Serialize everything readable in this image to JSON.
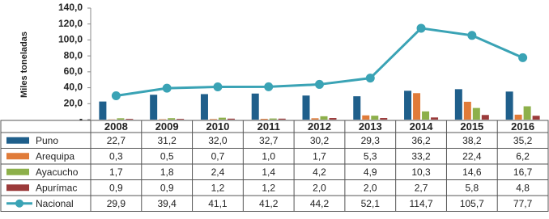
{
  "chart_data": {
    "type": "bar",
    "y_label": "Miles toneladas",
    "categories": [
      "2008",
      "2009",
      "2010",
      "2011",
      "2012",
      "2013",
      "2014",
      "2015",
      "2016"
    ],
    "ylim": [
      0,
      140
    ],
    "yticks": [
      {
        "value": 0,
        "label": "-"
      },
      {
        "value": 20,
        "label": "20,0"
      },
      {
        "value": 40,
        "label": "40,0"
      },
      {
        "value": 60,
        "label": "60,0"
      },
      {
        "value": 80,
        "label": "80,0"
      },
      {
        "value": 100,
        "label": "100,0"
      },
      {
        "value": 120,
        "label": "120,0"
      },
      {
        "value": 140,
        "label": "140,0"
      }
    ],
    "series": [
      {
        "name": "Puno",
        "type": "bar",
        "color": "#1f5f8b",
        "values": [
          22.7,
          31.2,
          32.0,
          32.7,
          30.2,
          29.3,
          36.2,
          38.2,
          35.2
        ],
        "value_labels": [
          "22,7",
          "31,2",
          "32,0",
          "32,7",
          "30,2",
          "29,3",
          "36,2",
          "38,2",
          "35,2"
        ]
      },
      {
        "name": "Arequipa",
        "type": "bar",
        "color": "#e07b39",
        "values": [
          0.3,
          0.5,
          0.7,
          1.0,
          1.7,
          5.3,
          33.2,
          22.4,
          6.2
        ],
        "value_labels": [
          "0,3",
          "0,5",
          "0,7",
          "1,0",
          "1,7",
          "5,3",
          "33,2",
          "22,4",
          "6,2"
        ]
      },
      {
        "name": "Ayacucho",
        "type": "bar",
        "color": "#8db04a",
        "values": [
          1.7,
          1.8,
          2.4,
          1.4,
          4.2,
          4.9,
          10.3,
          14.6,
          16.7
        ],
        "value_labels": [
          "1,7",
          "1,8",
          "2,4",
          "1,4",
          "4,2",
          "4,9",
          "10,3",
          "14,6",
          "16,7"
        ]
      },
      {
        "name": "Apurímac",
        "type": "bar",
        "color": "#9b3a3a",
        "values": [
          0.9,
          0.9,
          1.2,
          1.2,
          2.0,
          2.0,
          2.7,
          5.8,
          4.8
        ],
        "value_labels": [
          "0,9",
          "0,9",
          "1,2",
          "1,2",
          "2,0",
          "2,0",
          "2,7",
          "5,8",
          "4,8"
        ]
      },
      {
        "name": "Nacional",
        "type": "line",
        "color": "#3aa3b5",
        "values": [
          29.9,
          39.4,
          41.1,
          41.2,
          44.2,
          52.1,
          114.7,
          105.7,
          77.7
        ],
        "value_labels": [
          "29,9",
          "39,4",
          "41,1",
          "41,2",
          "44,2",
          "52,1",
          "114,7",
          "105,7",
          "77,7"
        ]
      }
    ]
  }
}
